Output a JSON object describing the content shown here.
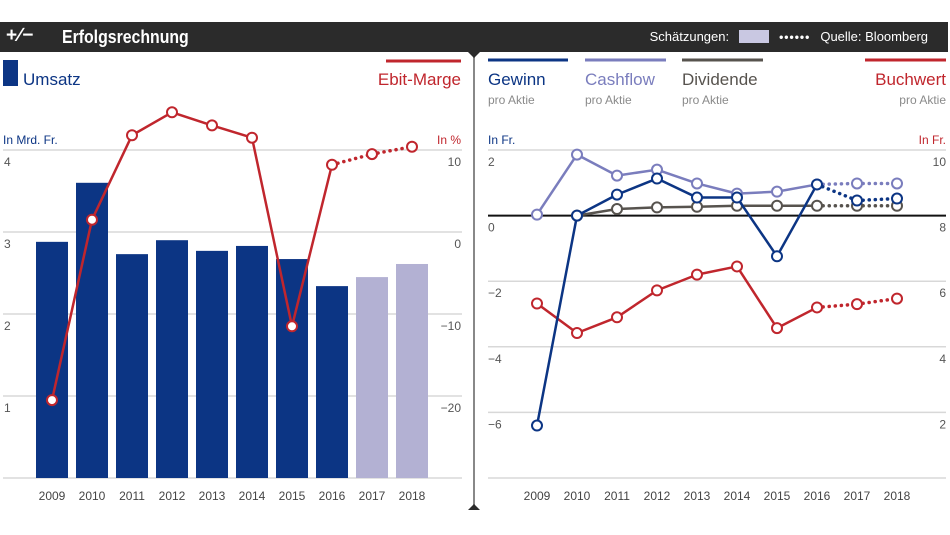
{
  "header": {
    "logo_text": "+∕−",
    "title": "Erfolgsrechnung",
    "estimates_label": "Schätzungen:",
    "estimates_dots": "••••••",
    "source": "Quelle: Bloomberg"
  },
  "colors": {
    "navy": "#0c3584",
    "red": "#c0262d",
    "lavender": "#7a7dbd",
    "estimate_bar": "#b3b1d3",
    "gray": "#57534e",
    "header_bg": "#2b2b2b"
  },
  "chart_data": [
    {
      "type": "bar+line",
      "categories": [
        "2009",
        "2010",
        "2011",
        "2012",
        "2013",
        "2014",
        "2015",
        "2016",
        "2017",
        "2018"
      ],
      "estimates_from": "2017",
      "series": [
        {
          "name": "Umsatz",
          "type": "bar",
          "axis": "left",
          "values": [
            2.88,
            3.6,
            2.73,
            2.9,
            2.77,
            2.83,
            2.67,
            2.34,
            2.45,
            2.61
          ]
        },
        {
          "name": "Ebit-Marge",
          "type": "line",
          "axis": "right",
          "values": [
            -20.5,
            1.5,
            11.8,
            14.6,
            13,
            11.5,
            -11.5,
            8.2,
            9.5,
            10.4
          ]
        }
      ],
      "left_axis": {
        "label": "In Mrd. Fr.",
        "ticks": [
          "4",
          "3",
          "2",
          "1"
        ],
        "range": [
          0,
          4
        ]
      },
      "right_axis": {
        "label": "In %",
        "ticks": [
          "10",
          "0",
          "−10",
          "−20"
        ],
        "range": [
          -30,
          10
        ]
      },
      "grid": true
    },
    {
      "type": "line",
      "categories": [
        "2009",
        "2010",
        "2011",
        "2012",
        "2013",
        "2014",
        "2015",
        "2016",
        "2017",
        "2018"
      ],
      "estimates_from": "2017",
      "series": [
        {
          "name": "Gewinn",
          "subtitle": "pro Aktie",
          "axis": "left",
          "values": [
            -6.4,
            0,
            0.64,
            1.13,
            0.55,
            0.55,
            -1.24,
            0.95,
            0.46,
            0.52
          ]
        },
        {
          "name": "Cashflow",
          "subtitle": "pro Aktie",
          "axis": "left",
          "values": [
            0.03,
            1.86,
            1.22,
            1.4,
            0.98,
            0.67,
            0.73,
            0.95,
            0.98,
            0.98
          ]
        },
        {
          "name": "Dividende",
          "subtitle": "pro Aktie",
          "axis": "left",
          "values": [
            null,
            0,
            0.2,
            0.25,
            0.27,
            0.3,
            0.3,
            0.3,
            0.3,
            0.3
          ]
        },
        {
          "name": "Buchwert",
          "subtitle": "pro Aktie",
          "axis": "right",
          "values": [
            5.32,
            4.42,
            4.9,
            5.72,
            6.2,
            6.45,
            4.57,
            5.2,
            5.3,
            5.47
          ]
        }
      ],
      "left_axis": {
        "label": "In Fr.",
        "ticks": [
          "2",
          "0",
          "−2",
          "−4",
          "−6"
        ],
        "range": [
          -8,
          2
        ]
      },
      "right_axis": {
        "label": "In Fr.",
        "ticks": [
          "10",
          "8",
          "6",
          "4",
          "2"
        ],
        "range": [
          0,
          10
        ]
      },
      "grid": true
    }
  ]
}
